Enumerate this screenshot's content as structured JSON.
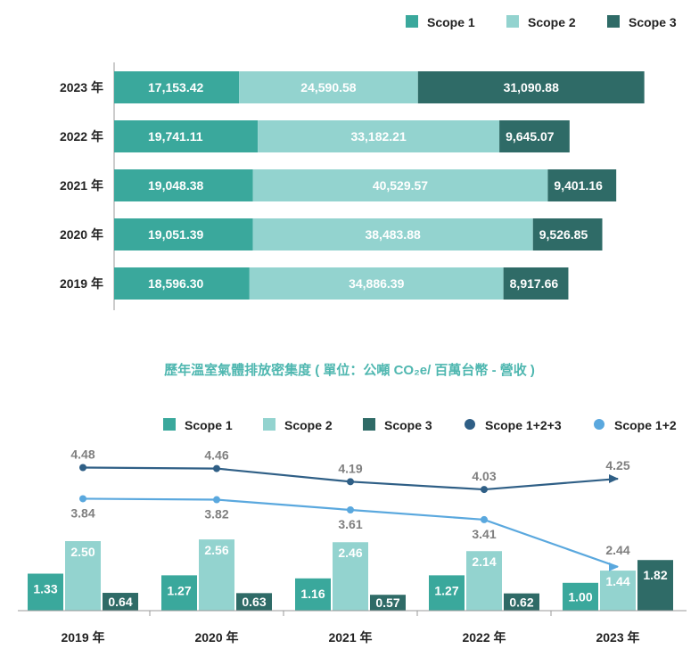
{
  "colors": {
    "scope1": "#3aa89c",
    "scope2": "#93d3cf",
    "scope3": "#2f6b67",
    "total_line": "#2f5f86",
    "s12_line": "#5aa8de",
    "label_gray": "#7f7f7f",
    "axis": "#9a9a9a"
  },
  "chart_data": [
    {
      "type": "bar",
      "orientation": "horizontal",
      "stacked": true,
      "title": "",
      "legend_position": "top-right",
      "categories": [
        "2023 年",
        "2022 年",
        "2021 年",
        "2020 年",
        "2019 年"
      ],
      "series": [
        {
          "name": "Scope 1",
          "values": [
            17153.42,
            19741.11,
            19048.38,
            19051.39,
            18596.3
          ],
          "labels": [
            "17,153.42",
            "19,741.11",
            "19,048.38",
            "19,051.39",
            "18,596.30"
          ]
        },
        {
          "name": "Scope 2",
          "values": [
            24590.58,
            33182.21,
            40529.57,
            38483.88,
            34886.39
          ],
          "labels": [
            "24,590.58",
            "33,182.21",
            "40,529.57",
            "38,483.88",
            "34,886.39"
          ]
        },
        {
          "name": "Scope 3",
          "values": [
            31090.88,
            9645.07,
            9401.16,
            9526.85,
            8917.66
          ],
          "labels": [
            "31,090.88",
            "9,645.07",
            "9,401.16",
            "9,526.85",
            "8,917.66"
          ]
        }
      ]
    },
    {
      "type": "bar",
      "combo": "bar+line",
      "title": "歷年溫室氣體排放密集度 ( 單位：公噸 CO₂e/ 百萬台幣 - 營收 )",
      "legend_position": "top-right",
      "categories": [
        "2019 年",
        "2020 年",
        "2021 年",
        "2022 年",
        "2023 年"
      ],
      "series": [
        {
          "name": "Scope 1",
          "type": "bar",
          "values": [
            1.33,
            1.27,
            1.16,
            1.27,
            1.0
          ],
          "labels": [
            "1.33",
            "1.27",
            "1.16",
            "1.27",
            "1.00"
          ]
        },
        {
          "name": "Scope 2",
          "type": "bar",
          "values": [
            2.5,
            2.56,
            2.46,
            2.14,
            1.44
          ],
          "labels": [
            "2.50",
            "2.56",
            "2.46",
            "2.14",
            "1.44"
          ]
        },
        {
          "name": "Scope 3",
          "type": "bar",
          "values": [
            0.64,
            0.63,
            0.57,
            0.62,
            1.82
          ],
          "labels": [
            "0.64",
            "0.63",
            "0.57",
            "0.62",
            "1.82"
          ]
        },
        {
          "name": "Scope 1+2+3",
          "type": "line",
          "values": [
            4.48,
            4.46,
            4.19,
            4.03,
            4.25
          ],
          "labels": [
            "4.48",
            "4.46",
            "4.19",
            "4.03",
            "4.25"
          ]
        },
        {
          "name": "Scope 1+2",
          "type": "line",
          "values": [
            3.84,
            3.82,
            3.61,
            3.41,
            2.44
          ],
          "labels": [
            "3.84",
            "3.82",
            "3.61",
            "3.41",
            "2.44"
          ]
        }
      ]
    }
  ]
}
